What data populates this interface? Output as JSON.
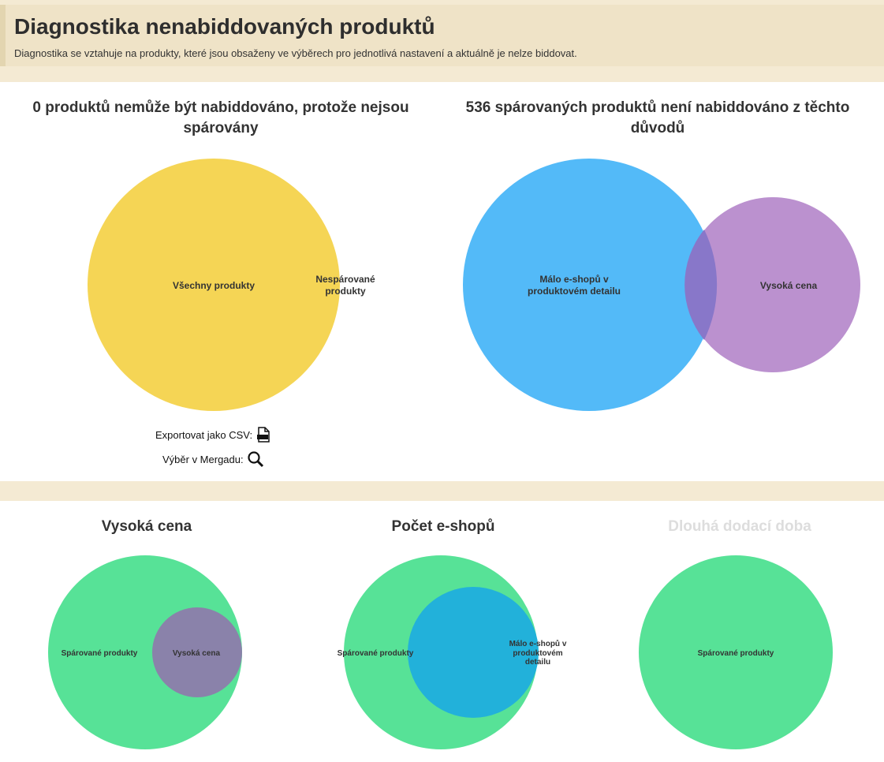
{
  "header": {
    "title": "Diagnostika nenabiddovaných produktů",
    "subtitle": "Diagnostika se vztahuje na produkty, které jsou obsaženy ve výběrech pro jednotlivá nastavení a aktuálně je nelze biddovat."
  },
  "unpaired": {
    "title": "0 produktů nemůže být nabiddováno, protože nejsou spárovány",
    "label_all": "Všechny produkty",
    "label_unpaired_1": "Nespárované",
    "label_unpaired_2": "produkty",
    "export_label": "Exportovat jako CSV:",
    "selection_label": "Výběr v Mergadu:"
  },
  "paired": {
    "title": "536 spárovaných produktů není nabiddováno z těchto důvodů",
    "label_few_1": "Málo e-shopů v",
    "label_few_2": "produktovém detailu",
    "label_price": "Vysoká cena"
  },
  "reasons": [
    {
      "title": "Vysoká cena",
      "label_paired": "Spárované produkty",
      "label_set": "Vysoká cena"
    },
    {
      "title": "Počet e-shopů",
      "label_paired": "Spárované produkty",
      "label_set_1": "Málo e-shopů v",
      "label_set_2": "produktovém",
      "label_set_3": "detailu"
    },
    {
      "title": "Dlouhá dodací doba",
      "label_paired": "Spárované produkty"
    }
  ],
  "colors": {
    "yellow": "#f5d555",
    "blue": "#53baf8",
    "purple": "#b78bcc",
    "green": "#57e297"
  }
}
